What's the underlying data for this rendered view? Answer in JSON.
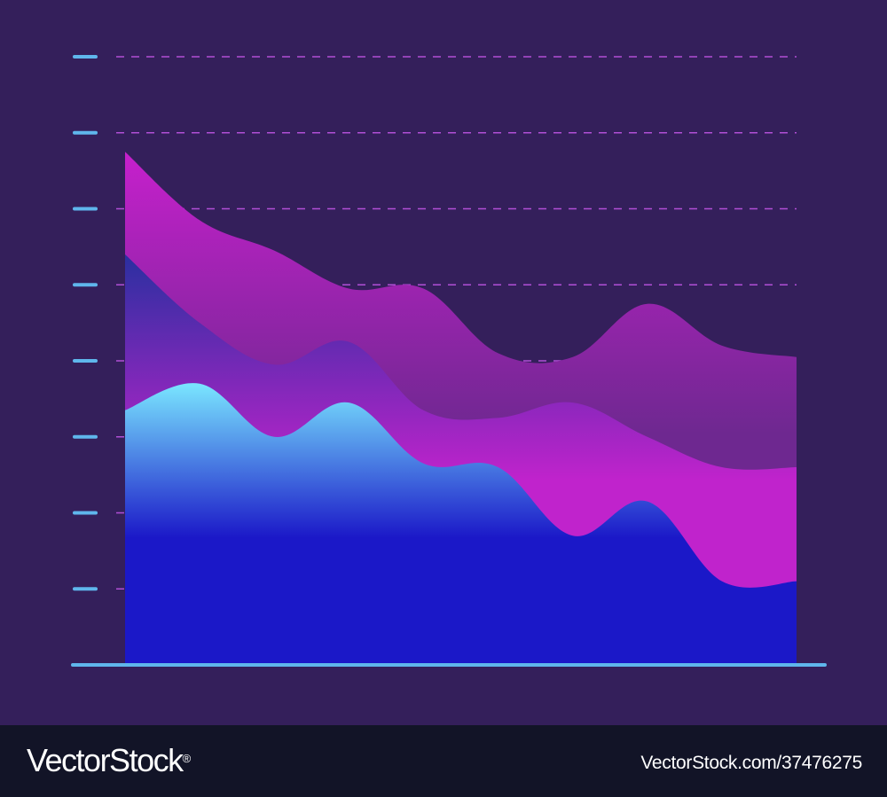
{
  "chart_data": {
    "type": "area",
    "title": "",
    "xlabel": "",
    "ylabel": "",
    "stacked": false,
    "grid": true,
    "legend": "none",
    "tick_count": 8,
    "ylim": [
      0,
      8
    ],
    "x": [
      0,
      1,
      2,
      3,
      4,
      5,
      6,
      7,
      8,
      9
    ],
    "series": [
      {
        "color_top": "#c620cc",
        "color_bottom": "#6e2890",
        "values": [
          6.75,
          5.85,
          5.45,
          4.95,
          4.95,
          4.1,
          4.05,
          4.75,
          4.2,
          4.05
        ]
      },
      {
        "color_top": "#2a2fa0",
        "color_bottom": "#c023cc",
        "values": [
          5.4,
          4.5,
          3.95,
          4.25,
          3.35,
          3.25,
          3.45,
          3.0,
          2.6,
          2.6
        ]
      },
      {
        "color_top": "#7ae6ff",
        "color_bottom": "#1b18c8",
        "values": [
          3.35,
          3.7,
          3.0,
          3.45,
          2.65,
          2.6,
          1.7,
          2.15,
          1.1,
          1.1
        ]
      }
    ]
  },
  "footer": {
    "brand": "VectorStock",
    "brand_mark": "®",
    "image_id": "VectorStock.com/37476275"
  }
}
